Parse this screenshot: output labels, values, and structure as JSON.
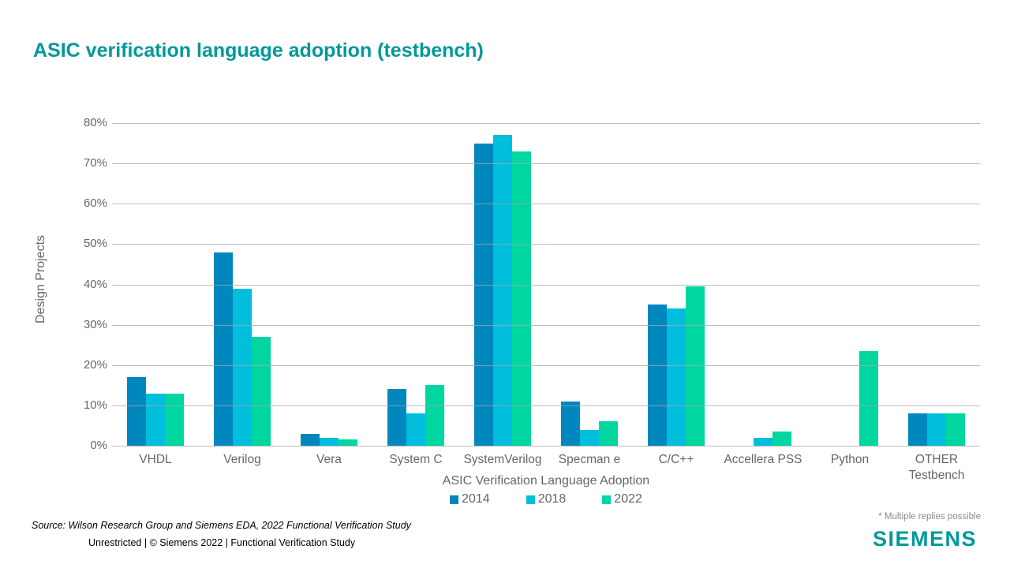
{
  "page": {
    "title": "ASIC verification language adoption (testbench)",
    "footnote": "* Multiple replies possible",
    "source_line": "Source:  Wilson Research Group and Siemens EDA, 2022 Functional Verification Study",
    "classification_line": "Unrestricted | © Siemens 2022 |  Functional Verification Study",
    "brand": "SIEMENS"
  },
  "colors": {
    "title_teal": "#009999",
    "brand_teal": "#009999",
    "gridline": "#a6a6a6",
    "axis_text": "#666666",
    "series_2014": "#0087BE",
    "series_2018": "#00BEDC",
    "series_2022": "#00D7A0"
  },
  "chart_data": {
    "type": "bar",
    "title": "ASIC verification language adoption (testbench)",
    "xlabel": "ASIC Verification Language Adoption",
    "ylabel": "Design Projects",
    "ylim": [
      0,
      80
    ],
    "ytick_step": 10,
    "ytick_labels": [
      "0%",
      "10%",
      "20%",
      "30%",
      "40%",
      "50%",
      "60%",
      "70%",
      "80%"
    ],
    "grid": true,
    "legend_position": "bottom",
    "categories": [
      "VHDL",
      "Verilog",
      "Vera",
      "System C",
      "SystemVerilog",
      "Specman e",
      "C/C++",
      "Accellera PSS",
      "Python",
      "OTHER Testbench"
    ],
    "series": [
      {
        "name": "2014",
        "color": "#0087BE",
        "values": [
          17,
          48,
          3,
          14,
          75,
          11,
          35,
          0,
          0,
          8
        ]
      },
      {
        "name": "2018",
        "color": "#00BEDC",
        "values": [
          13,
          39,
          2,
          8,
          77,
          4,
          34,
          2,
          0,
          8
        ]
      },
      {
        "name": "2022",
        "color": "#00D7A0",
        "values": [
          13,
          27,
          1.5,
          15,
          73,
          6,
          39.5,
          3.5,
          23.5,
          8
        ]
      }
    ]
  }
}
